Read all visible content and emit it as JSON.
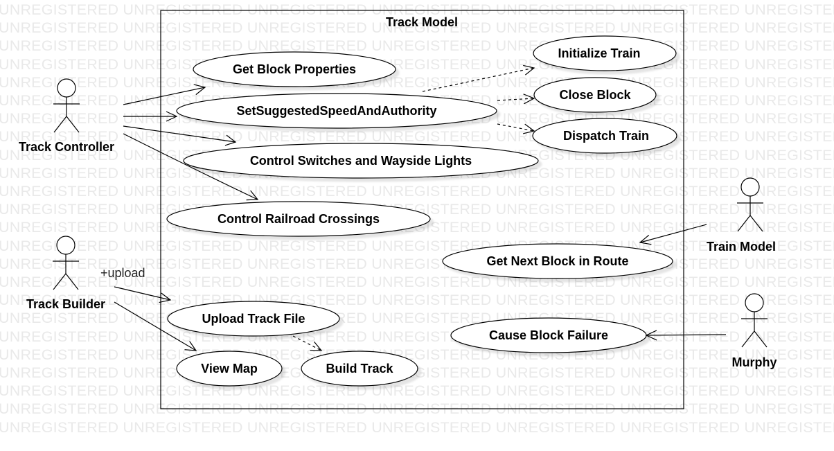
{
  "watermark": {
    "text": "UNREGISTERED UNREGISTERED UNREGISTERED UNREGISTERED UNREGISTERED UNREGISTERED UNREGISTERED"
  },
  "system": {
    "title": "Track Model"
  },
  "actors": {
    "track_controller": "Track Controller",
    "track_builder": "Track Builder",
    "train_model": "Train Model",
    "murphy": "Murphy"
  },
  "use_cases": {
    "initialize_train": "Initialize Train",
    "get_block_properties": "Get Block Properties",
    "close_block": "Close Block",
    "set_suggested_speed": "SetSuggestedSpeedAndAuthority",
    "dispatch_train": "Dispatch Train",
    "control_switches": "Control Switches and Wayside Lights",
    "control_crossings": "Control Railroad Crossings",
    "get_next_block": "Get Next Block in Route",
    "upload_track_file": "Upload Track File",
    "cause_block_failure": "Cause Block Failure",
    "view_map": "View Map",
    "build_track": "Build Track"
  },
  "edge_labels": {
    "upload": "+upload"
  }
}
